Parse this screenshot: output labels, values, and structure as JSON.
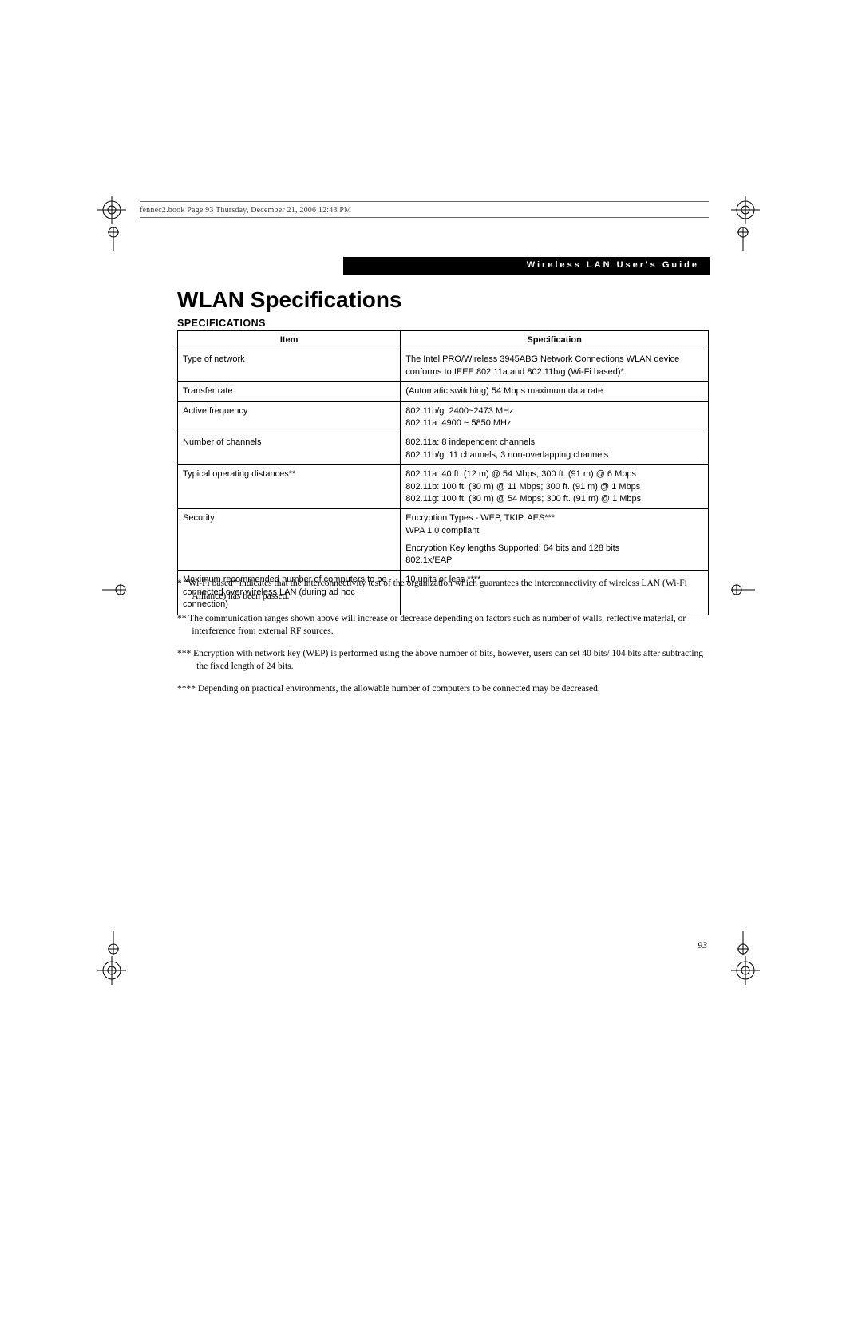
{
  "header_text": "fennec2.book  Page 93  Thursday, December 21, 2006  12:43 PM",
  "band_text": "Wireless LAN User's Guide",
  "title": "WLAN Specifications",
  "subhead": "SPECIFICATIONS",
  "table": {
    "columns": [
      "Item",
      "Specification"
    ],
    "rows": [
      [
        "Type of network",
        "The Intel PRO/Wireless 3945ABG Network Connections WLAN device conforms to IEEE 802.11a and 802.11b/g (Wi-Fi based)*."
      ],
      [
        "Transfer rate",
        "(Automatic switching) 54 Mbps maximum data rate"
      ],
      [
        "Active frequency",
        "802.11b/g: 2400~2473 MHz\n802.11a: 4900 ~ 5850 MHz"
      ],
      [
        "Number of channels",
        "802.11a: 8 independent channels\n802.11b/g: 11 channels, 3 non-overlapping channels"
      ],
      [
        "Typical operating distances**",
        "802.11a: 40 ft. (12 m) @ 54 Mbps; 300 ft. (91 m) @ 6 Mbps\n802.11b: 100 ft. (30 m) @ 11 Mbps; 300 ft. (91 m) @ 1 Mbps\n802.11g: 100 ft. (30 m) @ 54 Mbps; 300 ft. (91 m) @ 1 Mbps"
      ],
      [
        "Security",
        "Encryption Types - WEP, TKIP, AES***\nWPA 1.0 compliant\n\nEncryption Key lengths Supported: 64 bits and 128 bits\n802.1x/EAP"
      ],
      [
        "Maximum recommended number of computers to be connected over wireless LAN (during ad hoc connection)",
        "10 units or less ****"
      ]
    ]
  },
  "footnotes": [
    "*  “Wi-Fi based” indicates that the interconnectivity test of the organization which guarantees the interconnectivity of wireless LAN (Wi-Fi Alliance) has been passed.",
    "**  The communication ranges shown above will increase or decrease depending on factors such as number of walls, reflective material, or interference from external RF sources.",
    "***  Encryption with network key (WEP) is performed using the above number of bits, however, users can set 40 bits/ 104 bits after subtracting the fixed length of 24 bits.",
    "****  Depending on practical environments, the allowable number of computers to be connected may be decreased."
  ],
  "page_number": "93",
  "colors": {
    "text": "#000000",
    "band_bg": "#000000",
    "band_fg": "#ffffff",
    "rule": "#666666"
  }
}
